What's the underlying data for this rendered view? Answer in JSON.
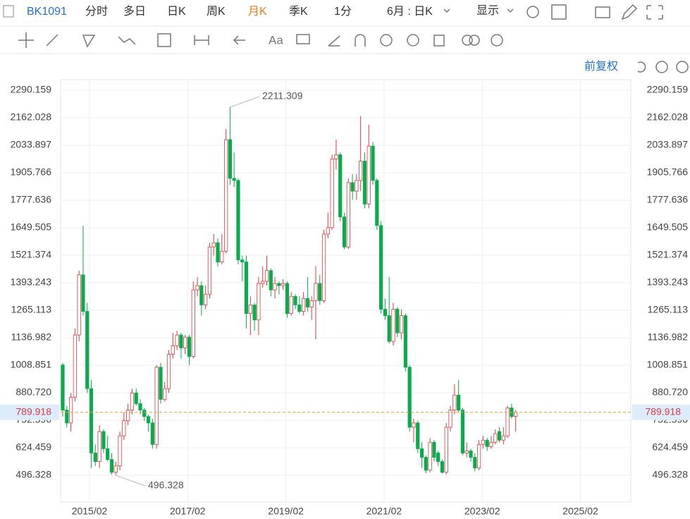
{
  "header": {
    "code": "BK1091",
    "tabs": [
      "分时",
      "多日",
      "日K",
      "周K",
      "月K",
      "季K",
      "1分"
    ],
    "active_tab": 4,
    "period": "6月 : 日K",
    "display": "显示"
  },
  "adjust": "前复权",
  "chart_data": {
    "type": "candlestick",
    "up_color": "#e0393e",
    "down_color": "#0aab4c",
    "x_ticks": [
      "2015/02",
      "2017/02",
      "2019/02",
      "2021/02",
      "2023/02",
      "2025/02"
    ],
    "ylim": [
      371.48,
      2339.44
    ],
    "yticks": [
      496.328,
      624.459,
      {
        "value": 752.59,
        "label": "752.590"
      },
      {
        "value": 880.72,
        "label": "880.720"
      },
      1008.851,
      1136.982,
      1265.113,
      1393.243,
      1521.374,
      1649.505,
      1777.636,
      1905.766,
      2033.897,
      2162.028,
      2290.159
    ],
    "last_price": 789.918,
    "max_label": 2211.309,
    "min_label": 496.328,
    "candles": [
      [
        1010,
        1020,
        770,
        800
      ],
      [
        800,
        820,
        720,
        740
      ],
      [
        740,
        880,
        700,
        860
      ],
      [
        860,
        1180,
        840,
        1150
      ],
      [
        1150,
        1450,
        1120,
        1430
      ],
      [
        1430,
        1660,
        1240,
        1260
      ],
      [
        1260,
        1300,
        880,
        900
      ],
      [
        900,
        940,
        530,
        600
      ],
      [
        600,
        640,
        540,
        560
      ],
      [
        560,
        730,
        530,
        700
      ],
      [
        700,
        710,
        600,
        620
      ],
      [
        620,
        680,
        560,
        570
      ],
      [
        570,
        600,
        500,
        510
      ],
      [
        510,
        560,
        496.328,
        540
      ],
      [
        540,
        700,
        520,
        680
      ],
      [
        680,
        790,
        660,
        750
      ],
      [
        750,
        830,
        730,
        800
      ],
      [
        800,
        900,
        780,
        880
      ],
      [
        880,
        900,
        820,
        830
      ],
      [
        830,
        850,
        780,
        800
      ],
      [
        800,
        810,
        750,
        770
      ],
      [
        770,
        780,
        700,
        740
      ],
      [
        740,
        760,
        620,
        640
      ],
      [
        640,
        1010,
        620,
        1000
      ],
      [
        1000,
        1020,
        830,
        850
      ],
      [
        850,
        930,
        840,
        900
      ],
      [
        900,
        1080,
        880,
        1060
      ],
      [
        1060,
        1160,
        1040,
        1100
      ],
      [
        1100,
        1170,
        1080,
        1150
      ],
      [
        1150,
        1160,
        1040,
        1090
      ],
      [
        1090,
        1150,
        1060,
        1140
      ],
      [
        1140,
        1150,
        1010,
        1050
      ],
      [
        1050,
        1400,
        1040,
        1360
      ],
      [
        1360,
        1420,
        1330,
        1380
      ],
      [
        1380,
        1400,
        1240,
        1290
      ],
      [
        1290,
        1380,
        1270,
        1340
      ],
      [
        1340,
        1580,
        1320,
        1560
      ],
      [
        1560,
        1620,
        1520,
        1580
      ],
      [
        1580,
        1600,
        1470,
        1490
      ],
      [
        1490,
        1620,
        1480,
        1540
      ],
      [
        1540,
        2110,
        1530,
        2060
      ],
      [
        2060,
        2211.309,
        1850,
        1880
      ],
      [
        1880,
        2000,
        1840,
        1870
      ],
      [
        1870,
        1880,
        1480,
        1500
      ],
      [
        1500,
        1520,
        1400,
        1490
      ],
      [
        1490,
        1520,
        1180,
        1250
      ],
      [
        1250,
        1330,
        1150,
        1290
      ],
      [
        1290,
        1300,
        1170,
        1220
      ],
      [
        1220,
        1420,
        1150,
        1390
      ],
      [
        1390,
        1470,
        1370,
        1400
      ],
      [
        1400,
        1520,
        1380,
        1450
      ],
      [
        1450,
        1460,
        1330,
        1360
      ],
      [
        1360,
        1420,
        1320,
        1390
      ],
      [
        1390,
        1400,
        1340,
        1380
      ],
      [
        1380,
        1410,
        1360,
        1390
      ],
      [
        1390,
        1400,
        1230,
        1250
      ],
      [
        1250,
        1350,
        1240,
        1330
      ],
      [
        1330,
        1340,
        1270,
        1290
      ],
      [
        1290,
        1330,
        1250,
        1260
      ],
      [
        1260,
        1350,
        1240,
        1320
      ],
      [
        1320,
        1420,
        1260,
        1280
      ],
      [
        1280,
        1330,
        1220,
        1310
      ],
      [
        1310,
        1470,
        1130,
        1390
      ],
      [
        1390,
        1430,
        1290,
        1310
      ],
      [
        1310,
        1640,
        1300,
        1620
      ],
      [
        1620,
        1720,
        1600,
        1650
      ],
      [
        1650,
        1990,
        1640,
        1970
      ],
      [
        1970,
        2060,
        1920,
        1990
      ],
      [
        1990,
        2000,
        1680,
        1700
      ],
      [
        1700,
        1720,
        1550,
        1560
      ],
      [
        1560,
        1880,
        1550,
        1860
      ],
      [
        1860,
        1900,
        1780,
        1820
      ],
      [
        1820,
        1900,
        1780,
        1870
      ],
      [
        1870,
        2170,
        1820,
        1960
      ],
      [
        1960,
        2000,
        1740,
        1760
      ],
      [
        1760,
        2130,
        1740,
        2030
      ],
      [
        2030,
        2050,
        1850,
        1870
      ],
      [
        1870,
        1880,
        1640,
        1660
      ],
      [
        1660,
        1680,
        1250,
        1270
      ],
      [
        1270,
        1320,
        1220,
        1240
      ],
      [
        1240,
        1420,
        1110,
        1120
      ],
      [
        1120,
        1300,
        1100,
        1270
      ],
      [
        1270,
        1280,
        1140,
        1160
      ],
      [
        1160,
        1270,
        1130,
        1240
      ],
      [
        1240,
        1250,
        980,
        1000
      ],
      [
        1000,
        1010,
        700,
        720
      ],
      [
        720,
        760,
        650,
        740
      ],
      [
        740,
        750,
        600,
        620
      ],
      [
        620,
        650,
        530,
        580
      ],
      [
        580,
        590,
        505,
        520
      ],
      [
        520,
        670,
        510,
        650
      ],
      [
        650,
        660,
        560,
        580
      ],
      [
        600,
        610,
        540,
        560
      ],
      [
        560,
        570,
        505,
        510
      ],
      [
        510,
        740,
        500,
        720
      ],
      [
        720,
        820,
        700,
        800
      ],
      [
        800,
        920,
        780,
        870
      ],
      [
        870,
        940,
        790,
        800
      ],
      [
        800,
        810,
        590,
        600
      ],
      [
        600,
        650,
        580,
        610
      ],
      [
        610,
        620,
        560,
        580
      ],
      [
        580,
        600,
        515,
        530
      ],
      [
        530,
        660,
        520,
        640
      ],
      [
        640,
        680,
        620,
        660
      ],
      [
        660,
        670,
        610,
        630
      ],
      [
        630,
        680,
        620,
        650
      ],
      [
        650,
        710,
        640,
        690
      ],
      [
        700,
        720,
        650,
        660
      ],
      [
        660,
        720,
        640,
        680
      ],
      [
        680,
        820,
        670,
        810
      ],
      [
        810,
        830,
        760,
        770
      ],
      [
        770,
        800,
        700,
        789.918
      ]
    ]
  }
}
